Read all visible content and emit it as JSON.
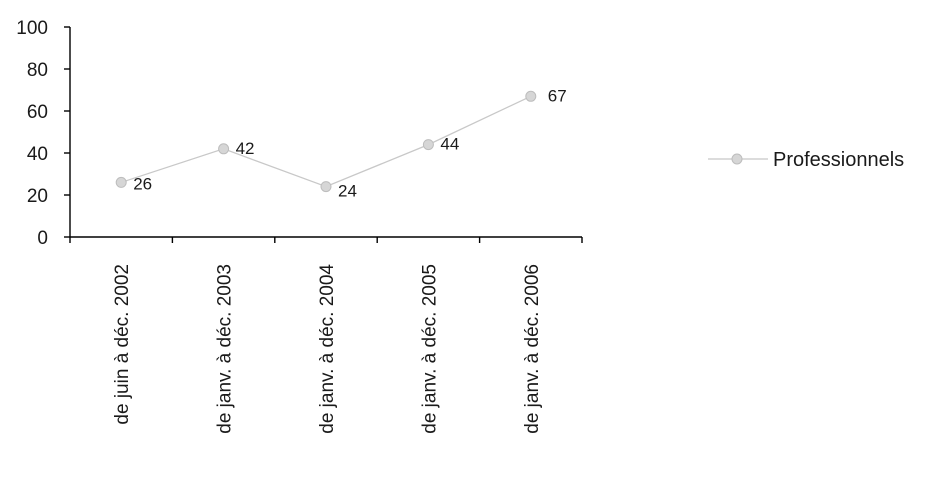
{
  "chart_data": {
    "type": "line",
    "categories": [
      "de juin à déc. 2002",
      "de janv. à déc. 2003",
      "de janv. à déc. 2004",
      "de janv. à déc. 2005",
      "de janv. à déc. 2006"
    ],
    "series": [
      {
        "name": "Professionnels",
        "values": [
          26,
          42,
          24,
          44,
          67
        ],
        "color": "#c8c8c8"
      }
    ],
    "data_labels": [
      "26",
      "42",
      "24",
      "44",
      "67"
    ],
    "ylim": [
      0,
      100
    ],
    "yticks": [
      0,
      20,
      40,
      60,
      80,
      100
    ],
    "ytick_labels": [
      "0",
      "20",
      "40",
      "60",
      "80",
      "100"
    ],
    "grid": false,
    "legend_position": "right",
    "title": "",
    "xlabel": "",
    "ylabel": ""
  }
}
